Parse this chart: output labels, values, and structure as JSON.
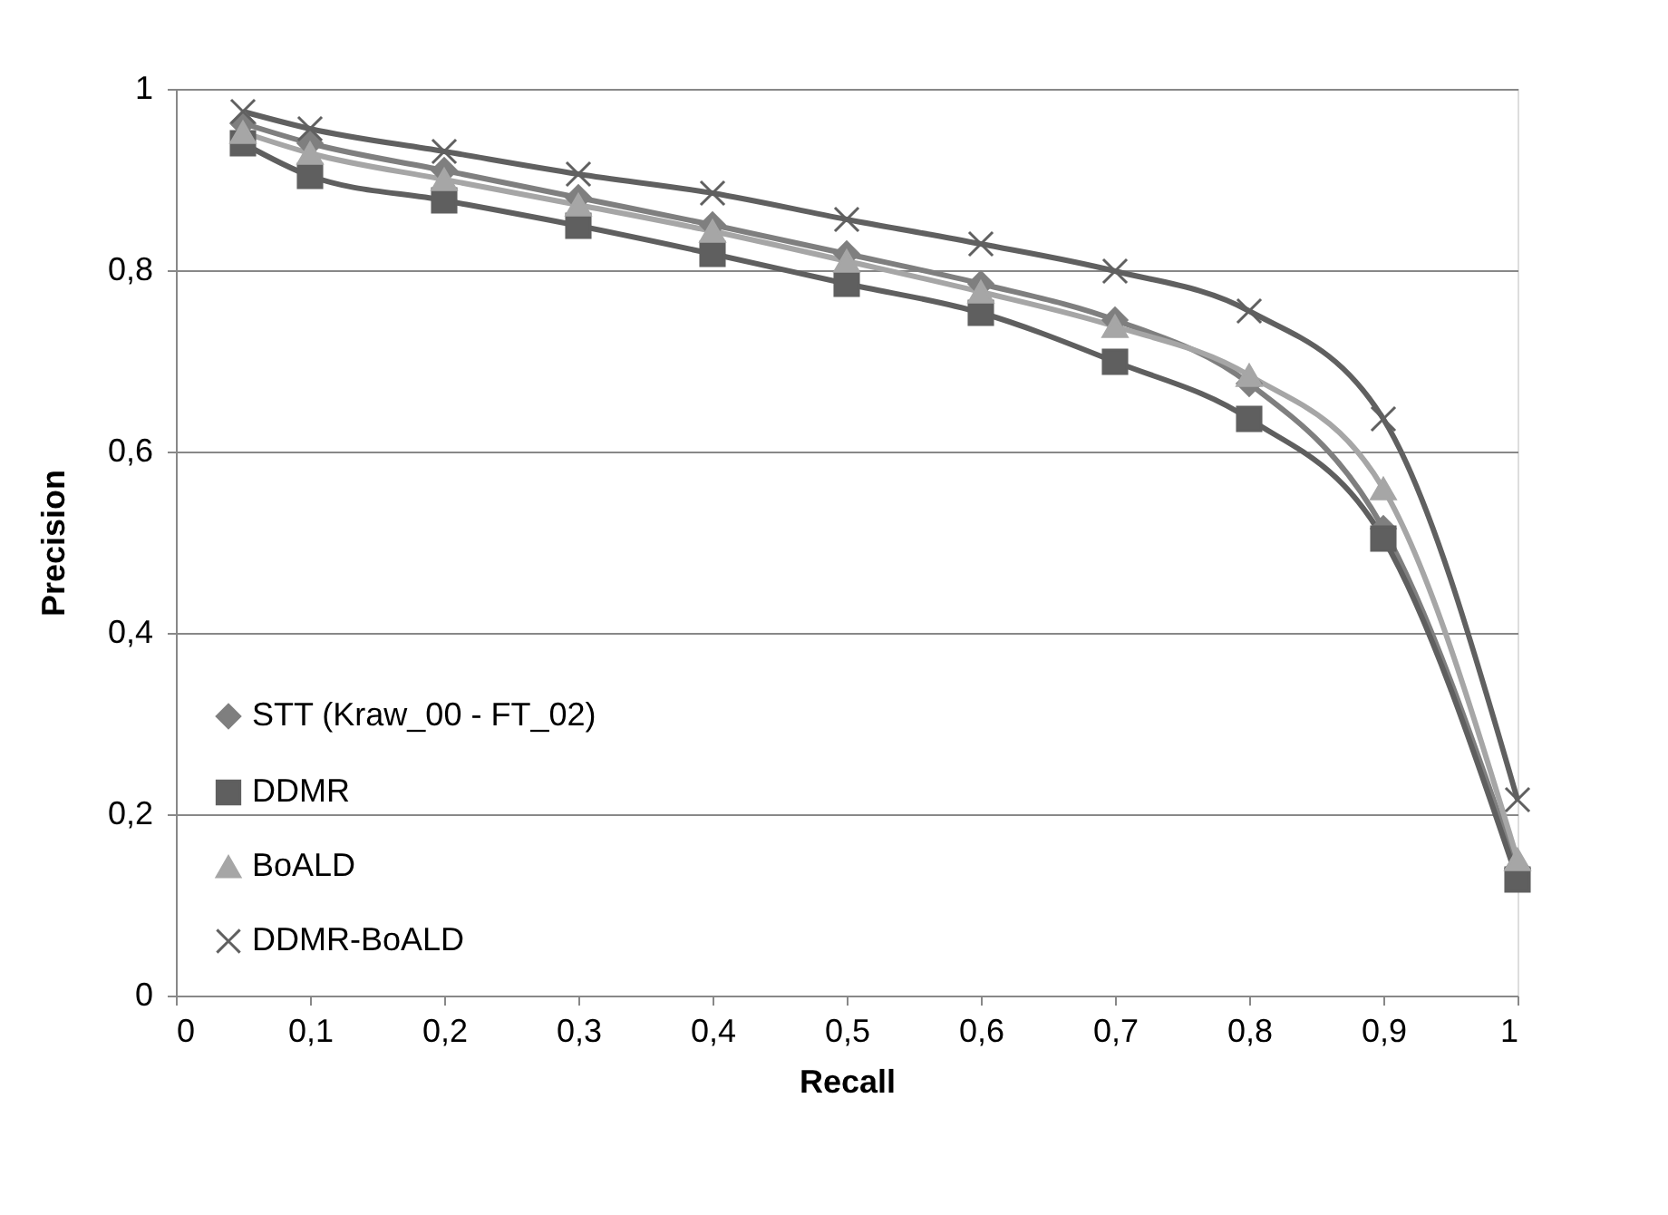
{
  "chart_data": {
    "type": "line",
    "xlabel": "Recall",
    "ylabel": "Precision",
    "x": [
      0.05,
      0.1,
      0.2,
      0.3,
      0.4,
      0.5,
      0.6,
      0.7,
      0.8,
      0.9,
      1.0
    ],
    "series": [
      {
        "name": "STT (Kraw_00 - FT_02)",
        "color": "#7f7f7f",
        "marker": "diamond",
        "values": [
          0.962,
          0.94,
          0.91,
          0.88,
          0.85,
          0.818,
          0.785,
          0.745,
          0.675,
          0.515,
          0.14
        ]
      },
      {
        "name": "DDMR",
        "color": "#5f5f5f",
        "marker": "square",
        "values": [
          0.94,
          0.904,
          0.877,
          0.849,
          0.818,
          0.785,
          0.753,
          0.699,
          0.636,
          0.504,
          0.128
        ]
      },
      {
        "name": "BoALD",
        "color": "#a6a6a6",
        "marker": "triangle",
        "values": [
          0.952,
          0.929,
          0.9,
          0.872,
          0.843,
          0.81,
          0.776,
          0.738,
          0.684,
          0.559,
          0.15
        ]
      },
      {
        "name": "DDMR-BoALD",
        "color": "#606060",
        "marker": "cross",
        "values": [
          0.975,
          0.956,
          0.931,
          0.906,
          0.885,
          0.856,
          0.829,
          0.799,
          0.755,
          0.636,
          0.216
        ]
      }
    ],
    "xlim": [
      0,
      1
    ],
    "ylim": [
      0,
      1
    ],
    "xticks": [
      0,
      {
        "value": 0.1,
        "label": "0,1"
      },
      {
        "value": 0.2,
        "label": "0,2"
      },
      {
        "value": 0.3,
        "label": "0,3"
      },
      {
        "value": 0.4,
        "label": "0,4"
      },
      {
        "value": 0.5,
        "label": "0,5"
      },
      {
        "value": 0.6,
        "label": "0,6"
      },
      {
        "value": 0.7,
        "label": "0,7"
      },
      {
        "value": 0.8,
        "label": "0,8"
      },
      {
        "value": 0.9,
        "label": "0,9"
      },
      1
    ],
    "yticks": [
      0,
      {
        "value": 0.2,
        "label": "0,2"
      },
      {
        "value": 0.4,
        "label": "0,4"
      },
      {
        "value": 0.6,
        "label": "0,6"
      },
      {
        "value": 0.8,
        "label": "0,8"
      },
      1
    ],
    "grid": "y",
    "legend": "bottom left",
    "line_style": "solid"
  }
}
